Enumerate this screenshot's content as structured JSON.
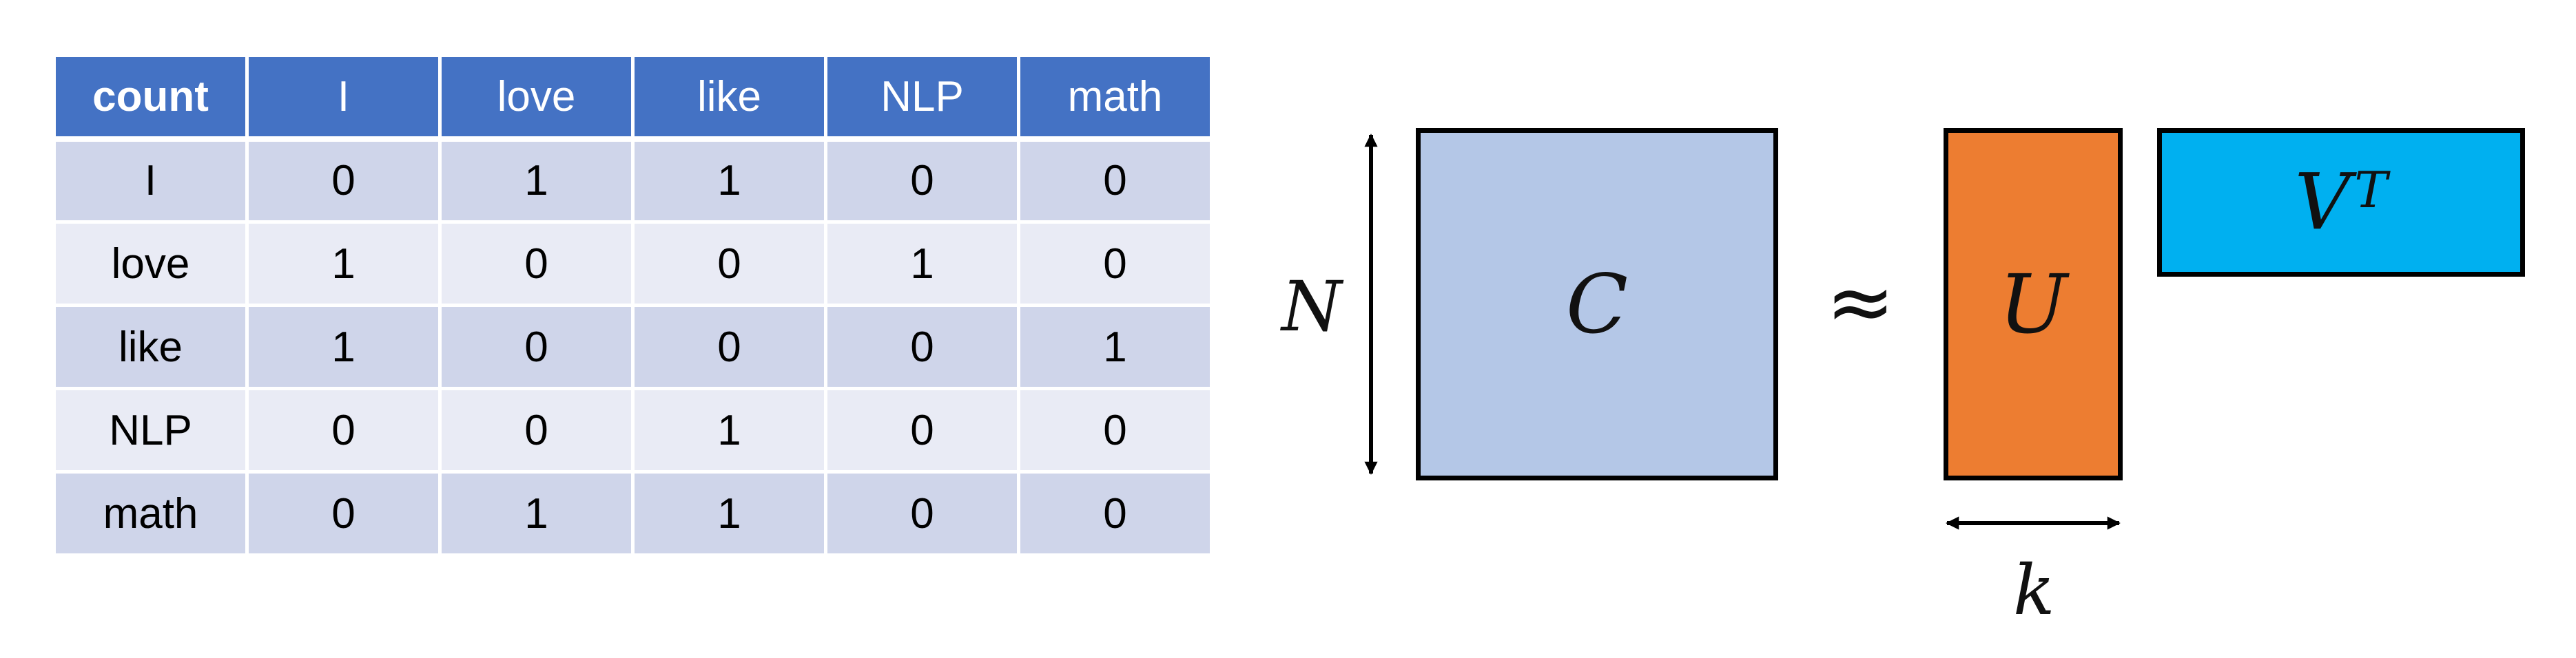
{
  "table": {
    "corner": "count",
    "columns": [
      "I",
      "love",
      "like",
      "NLP",
      "math"
    ],
    "rows": [
      {
        "label": "I",
        "values": [
          "0",
          "1",
          "1",
          "0",
          "0"
        ]
      },
      {
        "label": "love",
        "values": [
          "1",
          "0",
          "0",
          "1",
          "0"
        ]
      },
      {
        "label": "like",
        "values": [
          "1",
          "0",
          "0",
          "0",
          "1"
        ]
      },
      {
        "label": "NLP",
        "values": [
          "0",
          "0",
          "1",
          "0",
          "0"
        ]
      },
      {
        "label": "math",
        "values": [
          "0",
          "1",
          "1",
          "0",
          "0"
        ]
      }
    ]
  },
  "diagram": {
    "n_label": "N",
    "c_label": "C",
    "approx_symbol": "≈",
    "u_label": "U",
    "v_label": "V",
    "v_superscript": "T",
    "k_label": "k",
    "colors": {
      "c_matrix": "#b4c7e7",
      "u_matrix": "#ed7d31",
      "v_matrix": "#00b0f0",
      "table_header": "#4472c4",
      "table_row_odd": "#cfd5ea",
      "table_row_even": "#e9ebf5"
    }
  }
}
